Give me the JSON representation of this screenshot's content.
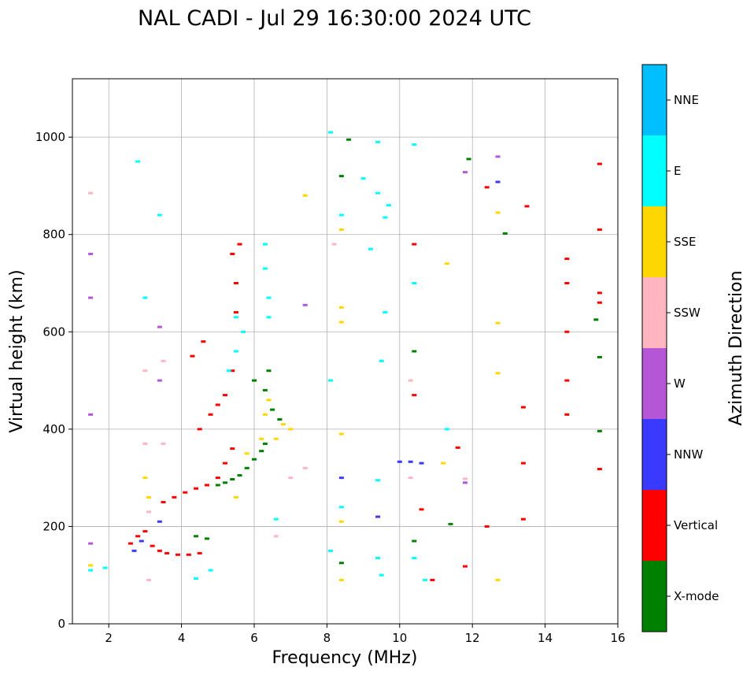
{
  "chart_data": {
    "type": "scatter",
    "title": "NAL CADI - Jul 29 16:30:00 2024 UTC",
    "xlabel": "Frequency (MHz)",
    "ylabel": "Virtual height (km)",
    "xlim": [
      1,
      16
    ],
    "ylim": [
      0,
      1120
    ],
    "xticks": [
      2,
      4,
      6,
      8,
      10,
      12,
      14,
      16
    ],
    "yticks": [
      0,
      200,
      400,
      600,
      800,
      1000
    ],
    "grid": true,
    "colorbar": {
      "label": "Azimuth Direction",
      "categories": [
        {
          "name": "X-mode",
          "color": "#008000"
        },
        {
          "name": "Vertical",
          "color": "#ff0000"
        },
        {
          "name": "NNW",
          "color": "#3a3aff"
        },
        {
          "name": "W",
          "color": "#b556d6"
        },
        {
          "name": "SSW",
          "color": "#ffb6c1"
        },
        {
          "name": "SSE",
          "color": "#ffd700"
        },
        {
          "name": "E",
          "color": "#00ffff"
        },
        {
          "name": "NNE",
          "color": "#00bfff"
        }
      ]
    },
    "series": [
      {
        "name": "X-mode",
        "points": [
          [
            5.0,
            285
          ],
          [
            5.2,
            290
          ],
          [
            5.4,
            297
          ],
          [
            5.6,
            305
          ],
          [
            5.8,
            320
          ],
          [
            6.0,
            338
          ],
          [
            6.2,
            355
          ],
          [
            6.3,
            370
          ],
          [
            6.0,
            500
          ],
          [
            6.3,
            480
          ],
          [
            6.5,
            440
          ],
          [
            6.7,
            420
          ],
          [
            6.4,
            520
          ],
          [
            4.4,
            180
          ],
          [
            4.7,
            175
          ],
          [
            8.4,
            125
          ],
          [
            8.4,
            920
          ],
          [
            8.6,
            995
          ],
          [
            10.4,
            170
          ],
          [
            10.4,
            560
          ],
          [
            11.4,
            205
          ],
          [
            11.9,
            955
          ],
          [
            12.9,
            802
          ],
          [
            15.4,
            625
          ],
          [
            15.5,
            548
          ],
          [
            15.5,
            396
          ]
        ]
      },
      {
        "name": "Vertical",
        "points": [
          [
            2.6,
            165
          ],
          [
            2.8,
            180
          ],
          [
            3.0,
            190
          ],
          [
            3.2,
            160
          ],
          [
            3.4,
            150
          ],
          [
            3.6,
            145
          ],
          [
            3.9,
            142
          ],
          [
            4.2,
            142
          ],
          [
            4.5,
            145
          ],
          [
            3.5,
            250
          ],
          [
            3.8,
            260
          ],
          [
            4.1,
            270
          ],
          [
            4.4,
            278
          ],
          [
            4.7,
            285
          ],
          [
            5.0,
            300
          ],
          [
            5.2,
            330
          ],
          [
            5.4,
            360
          ],
          [
            4.5,
            400
          ],
          [
            4.8,
            430
          ],
          [
            5.0,
            450
          ],
          [
            5.2,
            470
          ],
          [
            5.4,
            520
          ],
          [
            4.3,
            550
          ],
          [
            4.6,
            580
          ],
          [
            5.5,
            640
          ],
          [
            5.5,
            700
          ],
          [
            5.4,
            760
          ],
          [
            5.6,
            780
          ],
          [
            12.4,
            200
          ],
          [
            11.8,
            118
          ],
          [
            13.4,
            215
          ],
          [
            13.4,
            330
          ],
          [
            13.4,
            445
          ],
          [
            13.5,
            858
          ],
          [
            12.4,
            897
          ],
          [
            14.6,
            750
          ],
          [
            14.6,
            700
          ],
          [
            14.6,
            600
          ],
          [
            14.6,
            500
          ],
          [
            14.6,
            430
          ],
          [
            15.5,
            680
          ],
          [
            15.5,
            660
          ],
          [
            15.5,
            318
          ],
          [
            15.5,
            945
          ],
          [
            15.5,
            810
          ],
          [
            10.4,
            470
          ],
          [
            10.4,
            780
          ],
          [
            10.6,
            235
          ],
          [
            10.9,
            90
          ],
          [
            11.6,
            362
          ]
        ]
      },
      {
        "name": "NNW",
        "points": [
          [
            2.7,
            150
          ],
          [
            2.9,
            170
          ],
          [
            3.4,
            210
          ],
          [
            8.4,
            300
          ],
          [
            9.4,
            220
          ],
          [
            10.0,
            333
          ],
          [
            10.3,
            333
          ],
          [
            10.6,
            330
          ],
          [
            12.7,
            908
          ]
        ]
      },
      {
        "name": "W",
        "points": [
          [
            1.5,
            430
          ],
          [
            1.5,
            670
          ],
          [
            1.5,
            760
          ],
          [
            1.5,
            165
          ],
          [
            3.4,
            500
          ],
          [
            3.4,
            610
          ],
          [
            7.4,
            655
          ],
          [
            11.8,
            290
          ],
          [
            11.8,
            928
          ],
          [
            12.7,
            960
          ]
        ]
      },
      {
        "name": "SSW",
        "points": [
          [
            1.5,
            885
          ],
          [
            3.0,
            370
          ],
          [
            3.0,
            520
          ],
          [
            3.1,
            230
          ],
          [
            3.1,
            90
          ],
          [
            3.5,
            540
          ],
          [
            3.5,
            370
          ],
          [
            6.6,
            180
          ],
          [
            7.0,
            300
          ],
          [
            7.4,
            320
          ],
          [
            8.2,
            780
          ],
          [
            10.3,
            300
          ],
          [
            10.3,
            500
          ],
          [
            11.8,
            298
          ]
        ]
      },
      {
        "name": "SSE",
        "points": [
          [
            1.5,
            120
          ],
          [
            3.0,
            300
          ],
          [
            3.1,
            260
          ],
          [
            5.5,
            260
          ],
          [
            5.8,
            350
          ],
          [
            6.2,
            380
          ],
          [
            6.4,
            460
          ],
          [
            6.6,
            380
          ],
          [
            6.8,
            410
          ],
          [
            7.0,
            400
          ],
          [
            6.3,
            430
          ],
          [
            8.4,
            390
          ],
          [
            8.4,
            210
          ],
          [
            8.4,
            810
          ],
          [
            8.4,
            620
          ],
          [
            7.4,
            880
          ],
          [
            11.2,
            330
          ],
          [
            11.3,
            740
          ],
          [
            12.7,
            90
          ],
          [
            12.7,
            515
          ],
          [
            12.7,
            618
          ],
          [
            12.7,
            845
          ],
          [
            8.4,
            90
          ],
          [
            8.4,
            650
          ]
        ]
      },
      {
        "name": "E",
        "points": [
          [
            1.5,
            110
          ],
          [
            1.9,
            115
          ],
          [
            2.8,
            950
          ],
          [
            3.0,
            670
          ],
          [
            3.4,
            840
          ],
          [
            4.4,
            93
          ],
          [
            4.8,
            110
          ],
          [
            5.3,
            520
          ],
          [
            5.5,
            560
          ],
          [
            5.5,
            630
          ],
          [
            5.7,
            600
          ],
          [
            6.3,
            730
          ],
          [
            6.3,
            780
          ],
          [
            6.4,
            670
          ],
          [
            6.4,
            630
          ],
          [
            6.6,
            215
          ],
          [
            8.1,
            1010
          ],
          [
            8.1,
            150
          ],
          [
            8.1,
            500
          ],
          [
            8.4,
            240
          ],
          [
            8.4,
            840
          ],
          [
            9.0,
            915
          ],
          [
            9.4,
            990
          ],
          [
            9.4,
            885
          ],
          [
            9.4,
            295
          ],
          [
            9.4,
            135
          ],
          [
            9.5,
            100
          ],
          [
            9.6,
            835
          ],
          [
            9.7,
            860
          ],
          [
            10.4,
            985
          ],
          [
            10.4,
            700
          ],
          [
            10.4,
            135
          ],
          [
            10.7,
            90
          ],
          [
            11.3,
            400
          ],
          [
            9.2,
            770
          ],
          [
            9.6,
            640
          ],
          [
            9.5,
            540
          ]
        ]
      }
    ]
  }
}
